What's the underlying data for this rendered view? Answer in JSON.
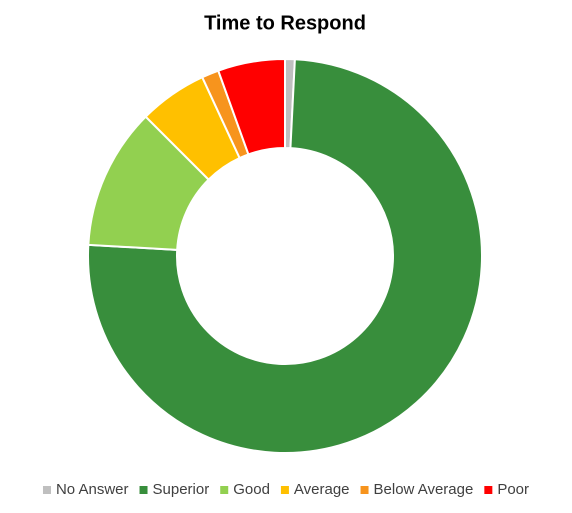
{
  "chart_data": {
    "type": "pie",
    "title": "Time to Respond",
    "donut": true,
    "legend": "bottom",
    "categories": [
      "No Answer",
      "Superior",
      "Good",
      "Average",
      "Below Average",
      "Poor"
    ],
    "values": [
      0.8,
      75.1,
      11.6,
      5.6,
      1.4,
      5.5
    ],
    "colors": [
      "#bfbfbf",
      "#388e3c",
      "#92d050",
      "#ffc000",
      "#f7941d",
      "#ff0000"
    ]
  }
}
